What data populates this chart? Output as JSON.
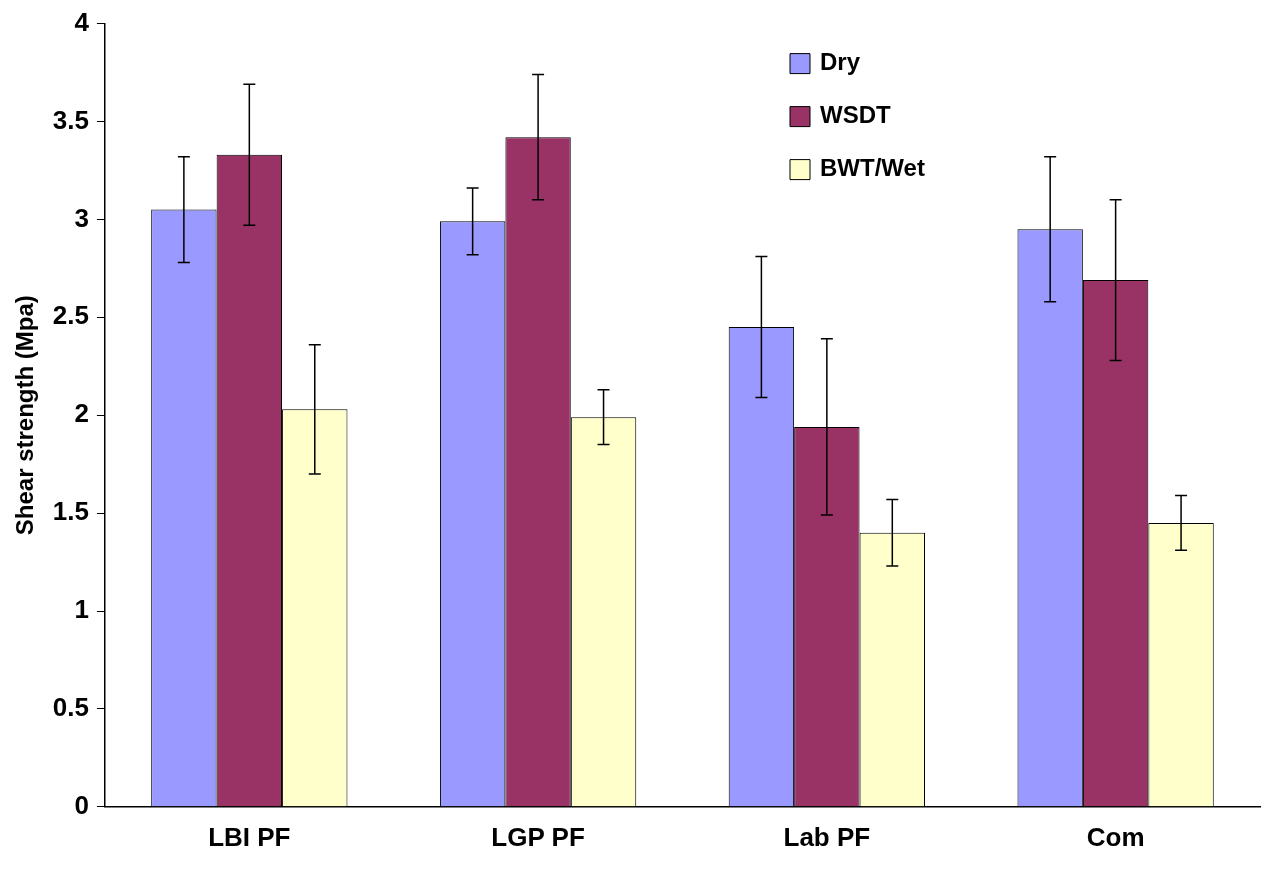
{
  "chart_data": {
    "type": "bar",
    "ylabel": "Shear strength (Mpa)",
    "categories": [
      "LBI PF",
      "LGP PF",
      "Lab PF",
      "Com"
    ],
    "series": [
      {
        "name": "Dry",
        "color": "#9999ff",
        "values": [
          3.05,
          2.99,
          2.45,
          2.95
        ],
        "errors": [
          0.27,
          0.17,
          0.36,
          0.37
        ]
      },
      {
        "name": "WSDT",
        "color": "#993366",
        "values": [
          3.33,
          3.42,
          1.94,
          2.69
        ],
        "errors": [
          0.36,
          0.32,
          0.45,
          0.41
        ]
      },
      {
        "name": "BWT/Wet",
        "color": "#ffffcc",
        "values": [
          2.03,
          1.99,
          1.4,
          1.45
        ],
        "errors": [
          0.33,
          0.14,
          0.17,
          0.14
        ]
      }
    ],
    "ylim": [
      0,
      4
    ],
    "yticks": [
      0,
      0.5,
      1,
      1.5,
      2,
      2.5,
      3,
      3.5,
      4
    ],
    "grid": false,
    "legend": "top right"
  }
}
